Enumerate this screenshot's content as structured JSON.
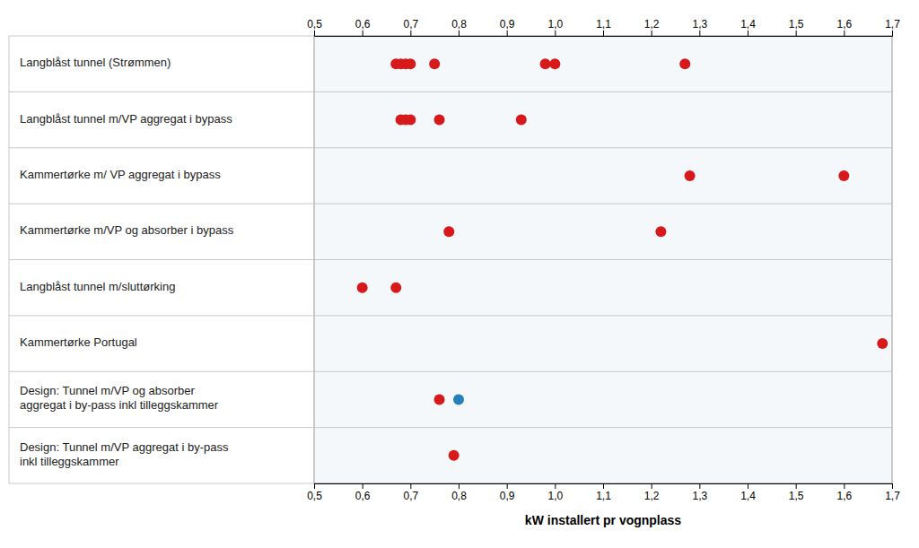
{
  "chart_data": {
    "type": "dot",
    "orientation": "horizontal",
    "xlabel": "kW installert pr vognplass",
    "categories": [
      "Langblåst tunnel (Strømmen)",
      "Langblåst tunnel m/VP aggregat i bypass",
      "Kammertørke m/ VP aggregat i bypass",
      "Kammertørke m/VP og absorber i bypass",
      "Langblåst tunnel m/sluttørking",
      "Kammertørke Portugal",
      "Design: Tunnel m/VP og absorber\naggregat i by-pass inkl tilleggskammer",
      "Design: Tunnel m/VP aggregat i by-pass\ninkl tilleggskammer"
    ],
    "values": [
      [
        0.67,
        0.68,
        0.69,
        0.7,
        0.75,
        0.98,
        1.0,
        1.27
      ],
      [
        0.68,
        0.69,
        0.7,
        0.76,
        0.93
      ],
      [
        1.28,
        1.6
      ],
      [
        0.78,
        1.22
      ],
      [
        0.6,
        0.67
      ],
      [
        1.68
      ],
      [
        0.76,
        0.8
      ],
      [
        0.79
      ]
    ],
    "colors": [
      [
        "#d7191c",
        "#d7191c",
        "#d7191c",
        "#d7191c",
        "#d7191c",
        "#d7191c",
        "#d7191c",
        "#d7191c"
      ],
      [
        "#d7191c",
        "#d7191c",
        "#d7191c",
        "#d7191c",
        "#d7191c"
      ],
      [
        "#d7191c",
        "#d7191c"
      ],
      [
        "#d7191c",
        "#d7191c"
      ],
      [
        "#d7191c",
        "#d7191c"
      ],
      [
        "#d7191c"
      ],
      [
        "#d7191c",
        "#2980b9"
      ],
      [
        "#d7191c"
      ]
    ],
    "xlim": [
      0.5,
      1.7
    ],
    "xticks": [
      {
        "value": 0.5,
        "label": "0,5"
      },
      {
        "value": 0.6,
        "label": "0,6"
      },
      {
        "value": 0.7,
        "label": "0,7"
      },
      {
        "value": 0.8,
        "label": "0,8"
      },
      {
        "value": 0.9,
        "label": "0,9"
      },
      {
        "value": 1.0,
        "label": "1,0"
      },
      {
        "value": 1.1,
        "label": "1,1"
      },
      {
        "value": 1.2,
        "label": "1,2"
      },
      {
        "value": 1.3,
        "label": "1,3"
      },
      {
        "value": 1.4,
        "label": "1,4"
      },
      {
        "value": 1.5,
        "label": "1,5"
      },
      {
        "value": 1.6,
        "label": "1,6"
      },
      {
        "value": 1.7,
        "label": "1,7"
      }
    ]
  }
}
